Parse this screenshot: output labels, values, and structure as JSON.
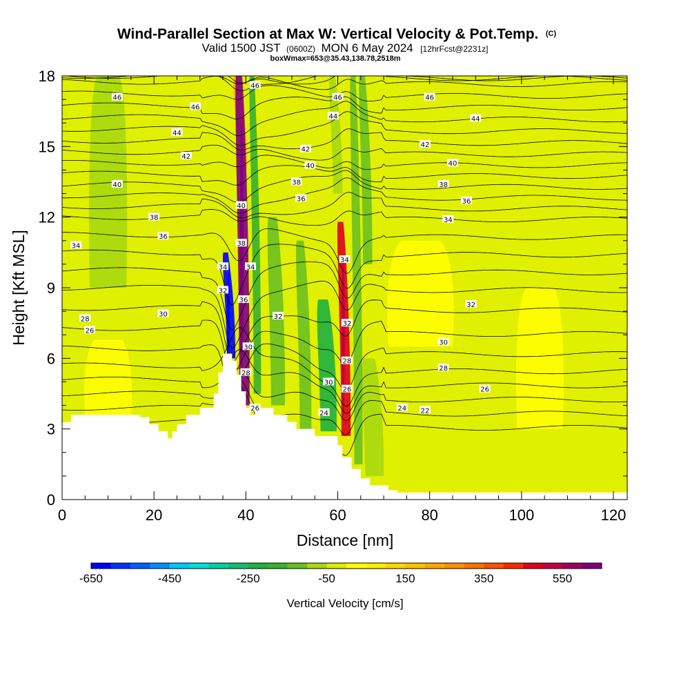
{
  "title": {
    "main": "Wind-Parallel Section at Max W: Vertical Velocity & Pot.Temp.",
    "main_mark": "(C)",
    "valid_prefix": "Valid 1500 JST",
    "valid_utc": "(0600Z)",
    "valid_date": "MON 6 May 2024",
    "forecast": "[12hrFcst@2231z]",
    "box_info": "boxWmax=653@35.43,138.78,2518m"
  },
  "chart_data": {
    "type": "heatmap",
    "xlabel": "Distance [nm]",
    "ylabel": "Height [Kft MSL]",
    "xlim": [
      0,
      123
    ],
    "ylim": [
      0,
      18
    ],
    "x_ticks": [
      0,
      20,
      40,
      60,
      80,
      100,
      120
    ],
    "y_ticks": [
      0,
      3,
      6,
      9,
      12,
      15,
      18
    ],
    "grid": false,
    "colorbar": {
      "title": "Vertical Velocity [cm/s]",
      "placement": "bottom",
      "range": [
        -650,
        650
      ],
      "tick_labels": [
        "-650",
        "-450",
        "-250",
        "-50",
        "150",
        "350",
        "550"
      ],
      "tick_values": [
        -650,
        -450,
        -250,
        -50,
        150,
        350,
        550
      ],
      "colors": [
        "#0000ff",
        "#0030ff",
        "#0060ff",
        "#0090ff",
        "#00c8ff",
        "#00e0d8",
        "#00d0a0",
        "#10c070",
        "#20b040",
        "#3ab030",
        "#6cc020",
        "#a8d810",
        "#dcec00",
        "#ffff00",
        "#fff000",
        "#ffd800",
        "#ffc000",
        "#ffa800",
        "#ff9000",
        "#ff7000",
        "#ff5000",
        "#ff2800",
        "#e00020",
        "#c00040",
        "#a00060",
        "#800080"
      ]
    },
    "terrain": [
      [
        0,
        3.3
      ],
      [
        2,
        3.3
      ],
      [
        2,
        3.6
      ],
      [
        4,
        3.6
      ],
      [
        4,
        3.6
      ],
      [
        17,
        3.6
      ],
      [
        17,
        3.5
      ],
      [
        19,
        3.5
      ],
      [
        19,
        3.2
      ],
      [
        21,
        3.2
      ],
      [
        21,
        2.9
      ],
      [
        23,
        2.9
      ],
      [
        23,
        2.6
      ],
      [
        24,
        2.6
      ],
      [
        24,
        2.9
      ],
      [
        25,
        2.9
      ],
      [
        25,
        3.2
      ],
      [
        27,
        3.2
      ],
      [
        27,
        3.6
      ],
      [
        30,
        3.6
      ],
      [
        30,
        3.9
      ],
      [
        33,
        3.9
      ],
      [
        33,
        4.5
      ],
      [
        34,
        4.5
      ],
      [
        34,
        5.4
      ],
      [
        35,
        5.4
      ],
      [
        35,
        6.2
      ],
      [
        37,
        6.2
      ],
      [
        37,
        5.9
      ],
      [
        38,
        5.9
      ],
      [
        38,
        5.3
      ],
      [
        39,
        5.3
      ],
      [
        39,
        4.6
      ],
      [
        40,
        4.6
      ],
      [
        40,
        3.9
      ],
      [
        41,
        3.9
      ],
      [
        41,
        3.6
      ],
      [
        42,
        3.6
      ],
      [
        42,
        3.9
      ],
      [
        46,
        3.9
      ],
      [
        46,
        3.6
      ],
      [
        49,
        3.6
      ],
      [
        49,
        3.3
      ],
      [
        51,
        3.3
      ],
      [
        51,
        3.0
      ],
      [
        55,
        3.0
      ],
      [
        55,
        2.7
      ],
      [
        60,
        2.7
      ],
      [
        60,
        2.3
      ],
      [
        61,
        2.3
      ],
      [
        61,
        1.8
      ],
      [
        63,
        1.8
      ],
      [
        63,
        1.3
      ],
      [
        65,
        1.3
      ],
      [
        65,
        0.9
      ],
      [
        67,
        0.9
      ],
      [
        67,
        0.6
      ],
      [
        71,
        0.6
      ],
      [
        71,
        0.4
      ],
      [
        73,
        0.4
      ],
      [
        73,
        0.3
      ],
      [
        123,
        0.3
      ]
    ],
    "w_features": [
      {
        "x": 39.7,
        "y0": 4.0,
        "y1": 18.0,
        "width": 2.2,
        "value": 600
      },
      {
        "x": 36.8,
        "y0": 6.0,
        "y1": 10.5,
        "width": 1.8,
        "value": -620
      },
      {
        "x": 61.8,
        "y0": 2.7,
        "y1": 11.8,
        "width": 2.0,
        "value": 480
      },
      {
        "x": 58.0,
        "y0": 2.9,
        "y1": 8.5,
        "width": 3.5,
        "value": -220
      },
      {
        "x": 42.5,
        "y0": 4.5,
        "y1": 18.0,
        "width": 1.6,
        "value": -190
      },
      {
        "x": 47.0,
        "y0": 4.0,
        "y1": 12.0,
        "width": 3.0,
        "value": -120
      },
      {
        "x": 53.0,
        "y0": 3.0,
        "y1": 11.0,
        "width": 2.5,
        "value": -130
      },
      {
        "x": 64.5,
        "y0": 1.5,
        "y1": 18.0,
        "width": 1.8,
        "value": -150
      },
      {
        "x": 66.5,
        "y0": 10.0,
        "y1": 18.0,
        "width": 2.0,
        "value": -120
      },
      {
        "x": 39.2,
        "y0": 14.0,
        "y1": 18.0,
        "width": 2.0,
        "value": 200
      },
      {
        "x": 60.0,
        "y0": 13.0,
        "y1": 18.0,
        "width": 2.0,
        "value": -100
      },
      {
        "x": 10.0,
        "y0": 9.0,
        "y1": 18.0,
        "width": 8.0,
        "value": -80
      },
      {
        "x": 68.0,
        "y0": 1.0,
        "y1": 6.0,
        "width": 4.0,
        "value": -90
      },
      {
        "x": 78.0,
        "y0": 6.5,
        "y1": 11.0,
        "width": 14.0,
        "value": 40
      },
      {
        "x": 104.0,
        "y0": 3.0,
        "y1": 9.0,
        "width": 10.0,
        "value": 40
      },
      {
        "x": 10.0,
        "y0": 3.5,
        "y1": 6.8,
        "width": 10.0,
        "value": 30
      }
    ],
    "theta_contours": [
      22,
      23,
      24,
      25,
      26,
      27,
      28,
      29,
      30,
      31,
      32,
      33,
      34,
      35,
      36,
      37,
      38,
      39,
      40,
      41,
      42,
      43,
      44,
      45,
      46,
      47,
      48
    ],
    "theta_profile_reference": [
      [
        0,
        19
      ],
      [
        3,
        21.5
      ],
      [
        6,
        26.5
      ],
      [
        9,
        30
      ],
      [
        12,
        34
      ],
      [
        15,
        40.5
      ],
      [
        18,
        46.5
      ]
    ],
    "contour_labels": [
      {
        "text": "46",
        "x": 12,
        "y": 17.1
      },
      {
        "text": "46",
        "x": 29,
        "y": 16.7
      },
      {
        "text": "44",
        "x": 25,
        "y": 15.6
      },
      {
        "text": "42",
        "x": 27,
        "y": 14.6
      },
      {
        "text": "40",
        "x": 12,
        "y": 13.4
      },
      {
        "text": "38",
        "x": 20,
        "y": 12.0
      },
      {
        "text": "36",
        "x": 22,
        "y": 11.2
      },
      {
        "text": "34",
        "x": 3,
        "y": 10.8
      },
      {
        "text": "28",
        "x": 5,
        "y": 7.7
      },
      {
        "text": "26",
        "x": 6,
        "y": 7.2
      },
      {
        "text": "30",
        "x": 22,
        "y": 7.9
      },
      {
        "text": "46",
        "x": 42,
        "y": 17.6
      },
      {
        "text": "40",
        "x": 39,
        "y": 12.5
      },
      {
        "text": "38",
        "x": 39,
        "y": 10.9
      },
      {
        "text": "34",
        "x": 35,
        "y": 9.9
      },
      {
        "text": "32",
        "x": 35,
        "y": 8.9
      },
      {
        "text": "34",
        "x": 41,
        "y": 9.9
      },
      {
        "text": "36",
        "x": 39.5,
        "y": 8.5
      },
      {
        "text": "30",
        "x": 40.5,
        "y": 6.5
      },
      {
        "text": "28",
        "x": 40,
        "y": 5.4
      },
      {
        "text": "26",
        "x": 42,
        "y": 3.9
      },
      {
        "text": "32",
        "x": 47,
        "y": 7.8
      },
      {
        "text": "46",
        "x": 60,
        "y": 17.1
      },
      {
        "text": "44",
        "x": 59,
        "y": 16.3
      },
      {
        "text": "42",
        "x": 53,
        "y": 14.9
      },
      {
        "text": "40",
        "x": 54,
        "y": 14.2
      },
      {
        "text": "38",
        "x": 51,
        "y": 13.5
      },
      {
        "text": "36",
        "x": 52,
        "y": 12.8
      },
      {
        "text": "34",
        "x": 61.5,
        "y": 10.2
      },
      {
        "text": "32",
        "x": 62,
        "y": 7.5
      },
      {
        "text": "28",
        "x": 62,
        "y": 5.9
      },
      {
        "text": "26",
        "x": 62,
        "y": 4.7
      },
      {
        "text": "30",
        "x": 58,
        "y": 5.0
      },
      {
        "text": "24",
        "x": 57,
        "y": 3.7
      },
      {
        "text": "46",
        "x": 80,
        "y": 17.1
      },
      {
        "text": "44",
        "x": 90,
        "y": 16.2
      },
      {
        "text": "42",
        "x": 79,
        "y": 15.1
      },
      {
        "text": "40",
        "x": 85,
        "y": 14.3
      },
      {
        "text": "38",
        "x": 83,
        "y": 13.4
      },
      {
        "text": "36",
        "x": 88,
        "y": 12.7
      },
      {
        "text": "34",
        "x": 84,
        "y": 11.9
      },
      {
        "text": "32",
        "x": 89,
        "y": 8.3
      },
      {
        "text": "30",
        "x": 83,
        "y": 6.7
      },
      {
        "text": "28",
        "x": 83,
        "y": 5.6
      },
      {
        "text": "26",
        "x": 92,
        "y": 4.7
      },
      {
        "text": "24",
        "x": 74,
        "y": 3.9
      },
      {
        "text": "22",
        "x": 79,
        "y": 3.8
      }
    ]
  }
}
